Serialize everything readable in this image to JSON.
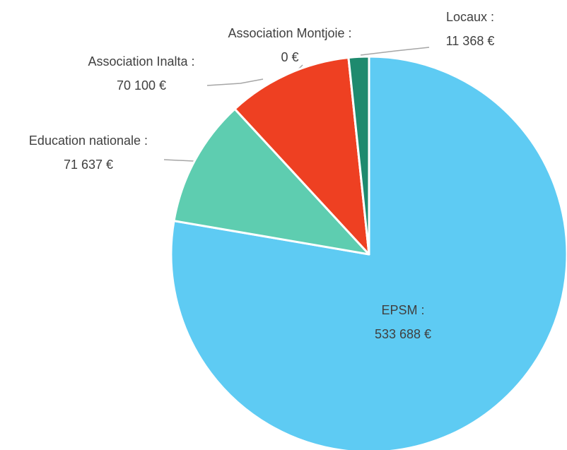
{
  "chart_data": {
    "type": "pie",
    "categories": [
      "EPSM :",
      "Education nationale :",
      "Association Inalta :",
      "Association Montjoie :",
      "Locaux :"
    ],
    "values": [
      533688,
      71637,
      70100,
      0,
      11368
    ],
    "value_labels": [
      "533 688 €",
      "71 637 €",
      "70 100 €",
      "0 €",
      "11 368 €"
    ],
    "colors": [
      "#5ecbf3",
      "#5ecdb0",
      "#ee4022",
      "#f2a33a",
      "#1e8a6e"
    ]
  }
}
